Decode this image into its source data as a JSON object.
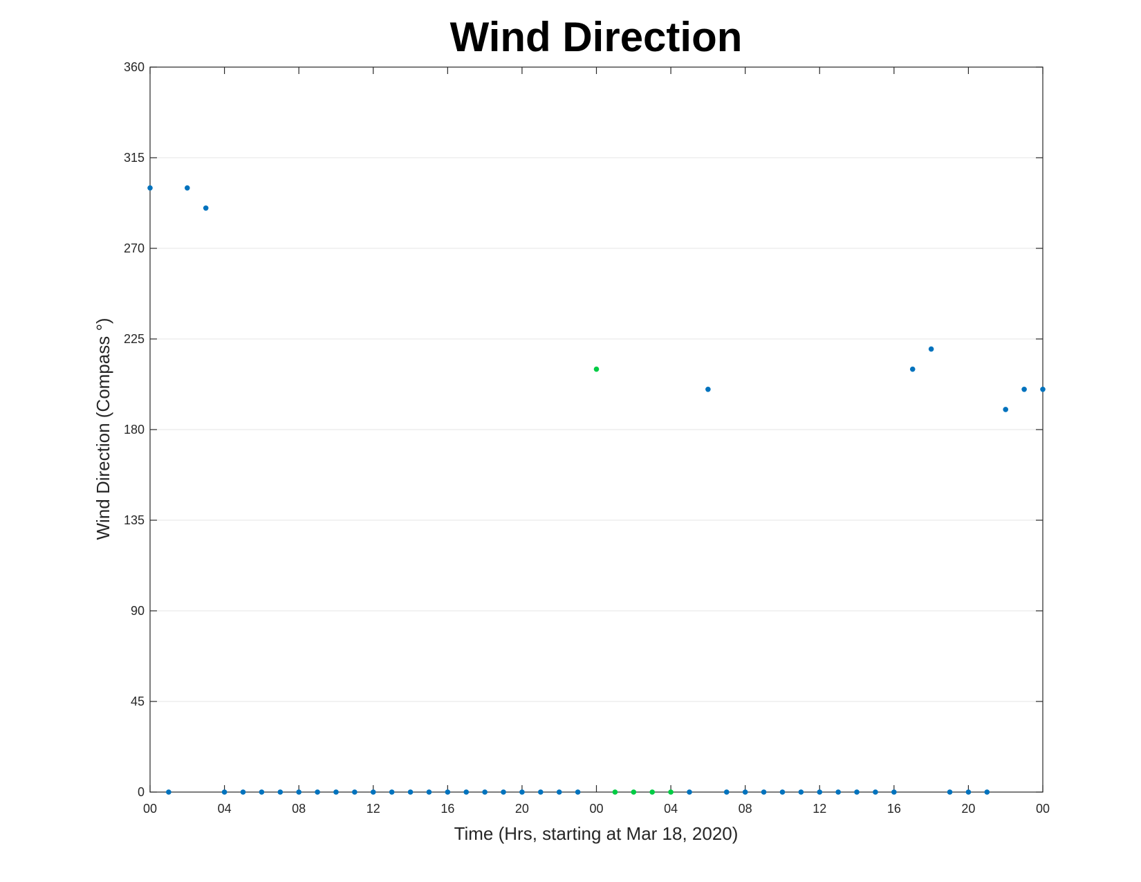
{
  "chart_data": {
    "type": "scatter",
    "title": "Wind Direction",
    "xlabel": "Time (Hrs, starting at Mar 18, 2020)",
    "ylabel": "Wind Direction (Compass °)",
    "xlim": [
      0,
      48
    ],
    "ylim": [
      0,
      360
    ],
    "x_ticks": [
      0,
      4,
      8,
      12,
      16,
      20,
      24,
      28,
      32,
      36,
      40,
      44,
      48
    ],
    "x_tick_labels": [
      "00",
      "04",
      "08",
      "12",
      "16",
      "20",
      "00",
      "04",
      "08",
      "12",
      "16",
      "20",
      "00"
    ],
    "y_ticks": [
      0,
      45,
      90,
      135,
      180,
      225,
      270,
      315,
      360
    ],
    "y_tick_labels": [
      "0",
      "45",
      "90",
      "135",
      "180",
      "225",
      "270",
      "315",
      "360"
    ],
    "grid": "horizontal",
    "legend": "none",
    "colors": {
      "primary": "#0072BD",
      "highlight": "#00CC44",
      "grid": "#e6e6e6",
      "axis": "#262626"
    },
    "series": [
      {
        "color": "#0072BD",
        "points": [
          [
            0,
            300
          ],
          [
            1,
            0
          ],
          [
            2,
            300
          ],
          [
            3,
            290
          ],
          [
            4,
            0
          ],
          [
            5,
            0
          ],
          [
            6,
            0
          ],
          [
            7,
            0
          ],
          [
            8,
            0
          ],
          [
            9,
            0
          ],
          [
            10,
            0
          ],
          [
            11,
            0
          ],
          [
            12,
            0
          ],
          [
            13,
            0
          ],
          [
            14,
            0
          ],
          [
            15,
            0
          ],
          [
            16,
            0
          ],
          [
            17,
            0
          ],
          [
            18,
            0
          ],
          [
            19,
            0
          ],
          [
            20,
            0
          ],
          [
            21,
            0
          ],
          [
            22,
            0
          ],
          [
            23,
            0
          ],
          [
            29,
            0
          ],
          [
            30,
            200
          ],
          [
            31,
            0
          ],
          [
            32,
            0
          ],
          [
            33,
            0
          ],
          [
            34,
            0
          ],
          [
            35,
            0
          ],
          [
            36,
            0
          ],
          [
            37,
            0
          ],
          [
            38,
            0
          ],
          [
            39,
            0
          ],
          [
            40,
            0
          ],
          [
            41,
            210
          ],
          [
            42,
            220
          ],
          [
            43,
            0
          ],
          [
            44,
            0
          ],
          [
            45,
            0
          ],
          [
            46,
            190
          ],
          [
            47,
            200
          ],
          [
            48,
            200
          ]
        ]
      },
      {
        "color": "#00CC44",
        "points": [
          [
            24,
            210
          ],
          [
            25,
            0
          ],
          [
            26,
            0
          ],
          [
            27,
            0
          ],
          [
            28,
            0
          ]
        ]
      }
    ]
  }
}
